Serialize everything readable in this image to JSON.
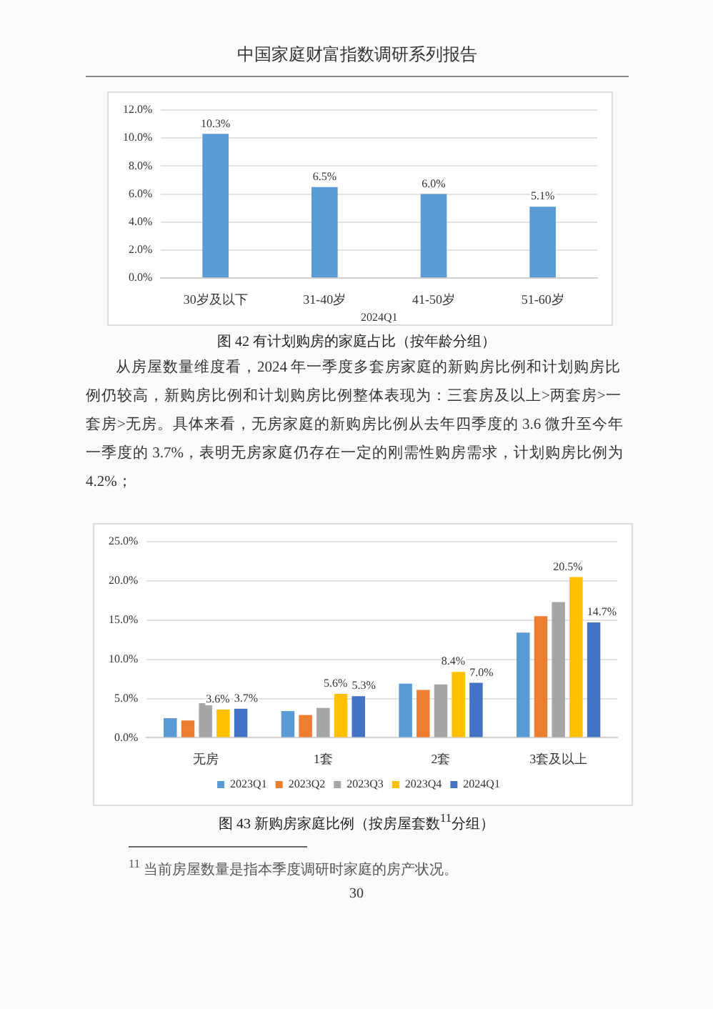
{
  "chart_data": [
    {
      "type": "bar",
      "title": "图 42 有计划购房的家庭占比（按年龄分组）",
      "xlabel": "2024Q1",
      "categories": [
        "30岁及以下",
        "31-40岁",
        "41-50岁",
        "51-60岁"
      ],
      "values": [
        10.3,
        6.5,
        6.0,
        5.1
      ],
      "color": "#5b9bd5",
      "value_labels": [
        "10.3%",
        "6.5%",
        "6.0%",
        "5.1%"
      ],
      "ylim": [
        0,
        12
      ],
      "yticks": [
        {
          "value": 0,
          "label": "0.0%"
        },
        {
          "value": 2,
          "label": "2.0%"
        },
        {
          "value": 4,
          "label": "4.0%"
        },
        {
          "value": 6,
          "label": "6.0%"
        },
        {
          "value": 8,
          "label": "8.0%"
        },
        {
          "value": 10,
          "label": "10.0%"
        },
        {
          "value": 12,
          "label": "12.0%"
        }
      ],
      "grid": "y",
      "annotations": [
        "中国家庭财富指数调研系列报告",
        "从房屋数量维度看，2024 年一季度多套房家庭的新购房比例和计划购房比例仍较高，新购房比例和计划购房比例整体表现为：三套房及以上>两套房>一套房>无房。具体来看，无房家庭的新购房比例从去年四季度的 3.6 微升至今年一季度的 3.7%，表明无房家庭仍存在一定的刚需性购房需求，计划购房比例为 4.2%；"
      ]
    },
    {
      "type": "bar",
      "title": "图 43 新购房家庭比例（按房屋套数$^{11}$分组）",
      "categories": [
        "无房",
        "1套",
        "2套",
        "3套及以上"
      ],
      "series": [
        {
          "name": "2023Q1",
          "color": "#5b9bd5",
          "values": [
            2.5,
            3.4,
            6.9,
            13.4
          ],
          "value_labels": [
            null,
            null,
            null,
            null
          ]
        },
        {
          "name": "2023Q2",
          "color": "#ed7d31",
          "values": [
            2.2,
            2.9,
            6.1,
            15.5
          ],
          "value_labels": [
            null,
            null,
            null,
            null
          ]
        },
        {
          "name": "2023Q3",
          "color": "#a5a5a5",
          "values": [
            4.4,
            3.8,
            6.8,
            17.3
          ],
          "value_labels": [
            null,
            null,
            null,
            null
          ]
        },
        {
          "name": "2023Q4",
          "color": "#ffc000",
          "values": [
            3.6,
            5.6,
            8.4,
            20.5
          ],
          "value_labels": [
            "3.6%",
            "5.6%",
            "8.4%",
            "20.5%"
          ]
        },
        {
          "name": "2024Q1",
          "color": "#4472c4",
          "values": [
            3.7,
            5.3,
            7.0,
            14.7
          ],
          "value_labels": [
            "3.7%",
            "5.3%",
            "7.0%",
            "14.7%"
          ]
        }
      ],
      "ylim": [
        0,
        25
      ],
      "yticks": [
        {
          "value": 0,
          "label": "0.0%"
        },
        {
          "value": 5,
          "label": "5.0%"
        },
        {
          "value": 10,
          "label": "10.0%"
        },
        {
          "value": 15,
          "label": "15.0%"
        },
        {
          "value": 20,
          "label": "20.0%"
        },
        {
          "value": 25,
          "label": "25.0%"
        }
      ],
      "grid": "y",
      "legend": "bottom",
      "annotations": [
        "$^{11}$ 当前房屋数量是指本季度调研时家庭的房产状况。",
        "30"
      ]
    }
  ]
}
